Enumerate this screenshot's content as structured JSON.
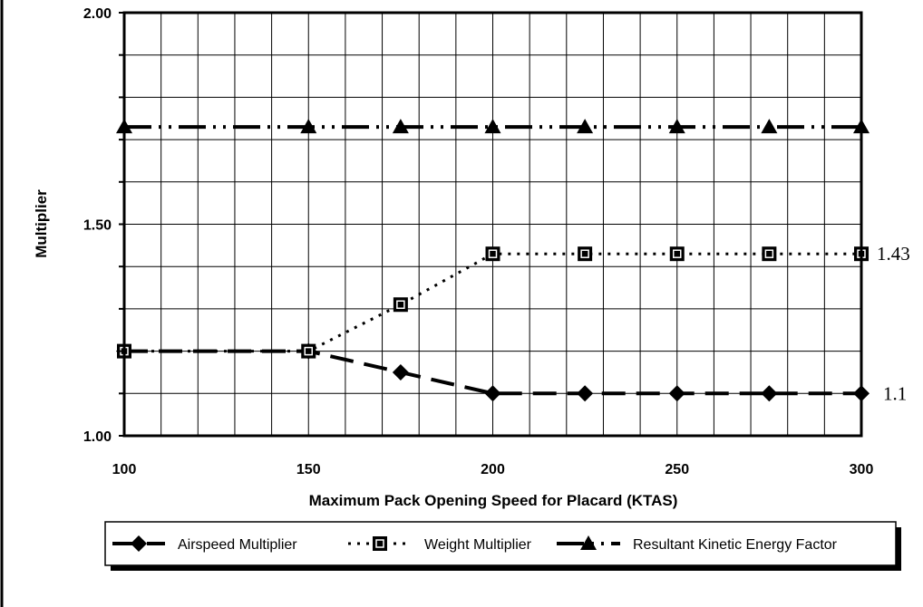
{
  "chart_data": {
    "type": "line",
    "title": "",
    "xlabel": "Maximum Pack Opening Speed for Placard (KTAS)",
    "ylabel": "Multiplier",
    "xlim": [
      100,
      300
    ],
    "ylim": [
      1.0,
      2.0
    ],
    "x_ticks": [
      "100",
      "150",
      "200",
      "250",
      "300"
    ],
    "y_ticks": [
      "1.00",
      "1.50",
      "2.00"
    ],
    "grid": true,
    "legend_position": "bottom",
    "x": [
      100,
      150,
      175,
      200,
      225,
      250,
      275,
      300
    ],
    "series": [
      {
        "name": "Airspeed Multiplier",
        "values": [
          1.2,
          1.2,
          1.15,
          1.1,
          1.1,
          1.1,
          1.1,
          1.1
        ],
        "marker": "diamond",
        "line_style": "dashed",
        "end_label": "1.1"
      },
      {
        "name": "Weight Multiplier",
        "values": [
          1.2,
          1.2,
          1.31,
          1.43,
          1.43,
          1.43,
          1.43,
          1.43
        ],
        "marker": "square",
        "line_style": "dotted",
        "end_label": "1.43"
      },
      {
        "name": "Resultant Kinetic Energy Factor",
        "values": [
          1.73,
          1.73,
          1.73,
          1.73,
          1.73,
          1.73,
          1.73,
          1.73
        ],
        "marker": "triangle",
        "line_style": "dash-dot-dot",
        "end_label": ""
      }
    ]
  }
}
